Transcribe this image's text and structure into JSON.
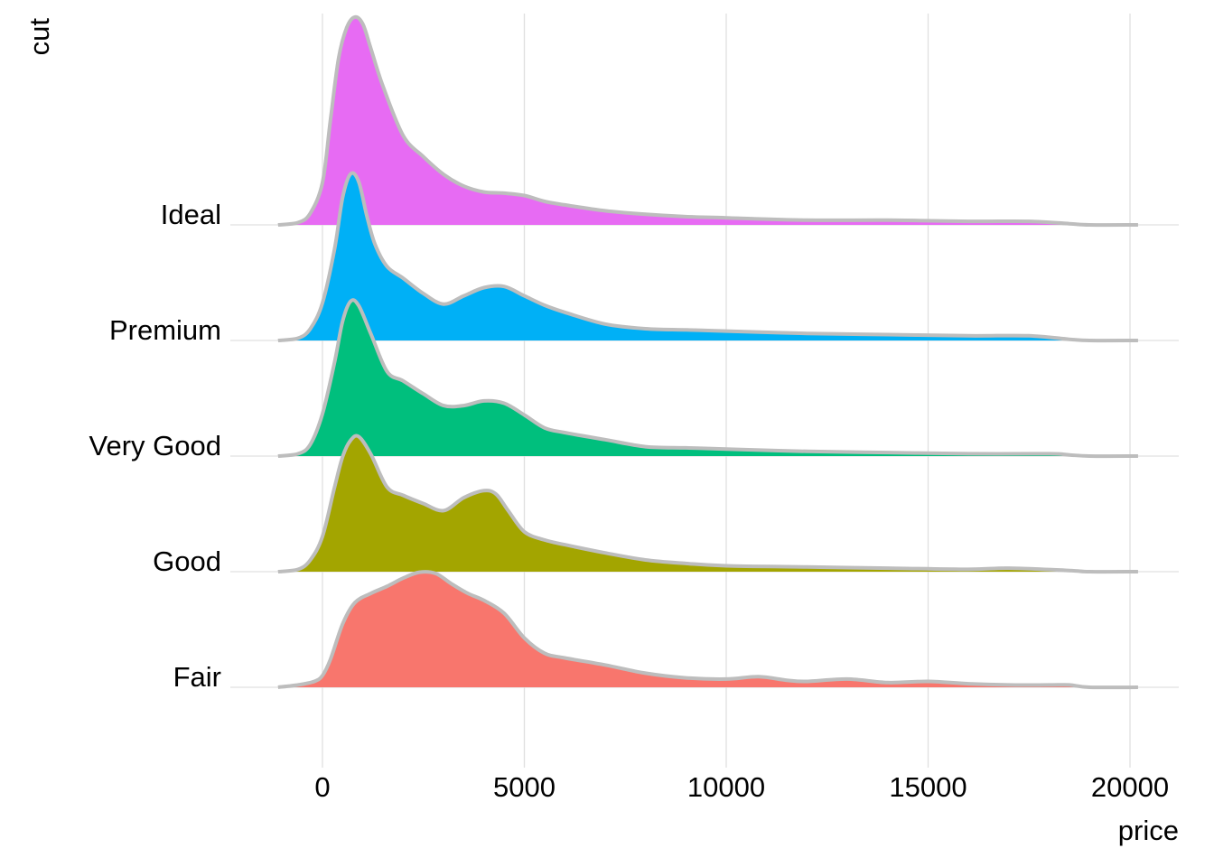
{
  "chart_data": {
    "type": "ridgeline",
    "xlabel": "price",
    "ylabel": "cut",
    "xlim": [
      -1100,
      20200
    ],
    "x_ticks": [
      0,
      5000,
      10000,
      15000,
      20000
    ],
    "x_tick_labels": [
      "0",
      "5000",
      "10000",
      "15000",
      "20000"
    ],
    "outline_color": "#bdbdbd",
    "grid": true,
    "legend": "none",
    "categories": [
      "Fair",
      "Good",
      "Very Good",
      "Premium",
      "Ideal"
    ],
    "series": [
      {
        "name": "Fair",
        "color": "#F8766D",
        "x": [
          -1100,
          -600,
          -200,
          0,
          200,
          500,
          800,
          1200,
          1600,
          2000,
          2400,
          2800,
          3200,
          3600,
          4000,
          4500,
          5000,
          5500,
          6000,
          7000,
          8000,
          9000,
          10000,
          10800,
          11500,
          12000,
          13000,
          14000,
          15000,
          16000,
          17000,
          18000,
          18500,
          19000,
          20200
        ],
        "values": [
          0,
          0.02,
          0.05,
          0.1,
          0.24,
          0.54,
          0.72,
          0.8,
          0.86,
          0.93,
          0.98,
          0.97,
          0.88,
          0.8,
          0.74,
          0.63,
          0.42,
          0.29,
          0.25,
          0.19,
          0.12,
          0.08,
          0.07,
          0.09,
          0.06,
          0.05,
          0.07,
          0.04,
          0.05,
          0.03,
          0.02,
          0.02,
          0.02,
          0.0,
          0
        ]
      },
      {
        "name": "Good",
        "color": "#A3A500",
        "x": [
          -1100,
          -600,
          -300,
          0,
          300,
          500,
          700,
          900,
          1200,
          1600,
          2000,
          2500,
          3000,
          3500,
          4000,
          4300,
          4600,
          5000,
          5500,
          6000,
          7000,
          8000,
          9000,
          10000,
          12000,
          14000,
          16000,
          17000,
          18500,
          19000,
          20200
        ],
        "values": [
          0,
          0.02,
          0.1,
          0.3,
          0.72,
          0.98,
          1.12,
          1.15,
          1.0,
          0.72,
          0.65,
          0.58,
          0.52,
          0.63,
          0.69,
          0.66,
          0.52,
          0.34,
          0.27,
          0.23,
          0.16,
          0.1,
          0.07,
          0.05,
          0.04,
          0.03,
          0.02,
          0.03,
          0.01,
          0.0,
          0
        ]
      },
      {
        "name": "Very Good",
        "color": "#00BF7D",
        "x": [
          -1100,
          -600,
          -300,
          0,
          300,
          500,
          700,
          900,
          1200,
          1600,
          2000,
          2500,
          3000,
          3500,
          4000,
          4500,
          5000,
          5500,
          6000,
          7000,
          8000,
          9000,
          10000,
          12000,
          14000,
          16000,
          18000,
          18500,
          19000,
          20200
        ],
        "values": [
          0,
          0.02,
          0.1,
          0.36,
          0.8,
          1.15,
          1.32,
          1.28,
          1.04,
          0.72,
          0.64,
          0.53,
          0.43,
          0.43,
          0.47,
          0.45,
          0.35,
          0.24,
          0.2,
          0.14,
          0.08,
          0.07,
          0.06,
          0.04,
          0.03,
          0.02,
          0.02,
          0.01,
          0.0,
          0
        ]
      },
      {
        "name": "Premium",
        "color": "#00B0F6",
        "x": [
          -1100,
          -600,
          -300,
          0,
          300,
          500,
          700,
          900,
          1100,
          1300,
          1600,
          2000,
          2500,
          3000,
          3500,
          4000,
          4500,
          5000,
          5500,
          6000,
          7000,
          8000,
          9000,
          10000,
          12000,
          14000,
          16000,
          17500,
          18500,
          19000,
          20200
        ],
        "values": [
          0,
          0.02,
          0.1,
          0.32,
          0.78,
          1.22,
          1.42,
          1.35,
          1.06,
          0.82,
          0.63,
          0.53,
          0.4,
          0.31,
          0.38,
          0.45,
          0.46,
          0.38,
          0.3,
          0.24,
          0.14,
          0.1,
          0.09,
          0.08,
          0.06,
          0.05,
          0.04,
          0.04,
          0.01,
          0.0,
          0
        ]
      },
      {
        "name": "Ideal",
        "color": "#E76BF3",
        "x": [
          -1100,
          -600,
          -300,
          0,
          200,
          400,
          600,
          800,
          1000,
          1200,
          1500,
          2000,
          2500,
          3000,
          3500,
          4000,
          4500,
          5000,
          5500,
          6000,
          7000,
          8000,
          9000,
          10000,
          12000,
          14000,
          16000,
          17500,
          18500,
          19000,
          20200
        ],
        "values": [
          0,
          0.02,
          0.1,
          0.36,
          0.9,
          1.42,
          1.68,
          1.77,
          1.71,
          1.5,
          1.18,
          0.76,
          0.58,
          0.43,
          0.33,
          0.28,
          0.27,
          0.25,
          0.2,
          0.17,
          0.12,
          0.09,
          0.07,
          0.06,
          0.04,
          0.04,
          0.03,
          0.03,
          0.01,
          0.0,
          0
        ]
      }
    ]
  }
}
